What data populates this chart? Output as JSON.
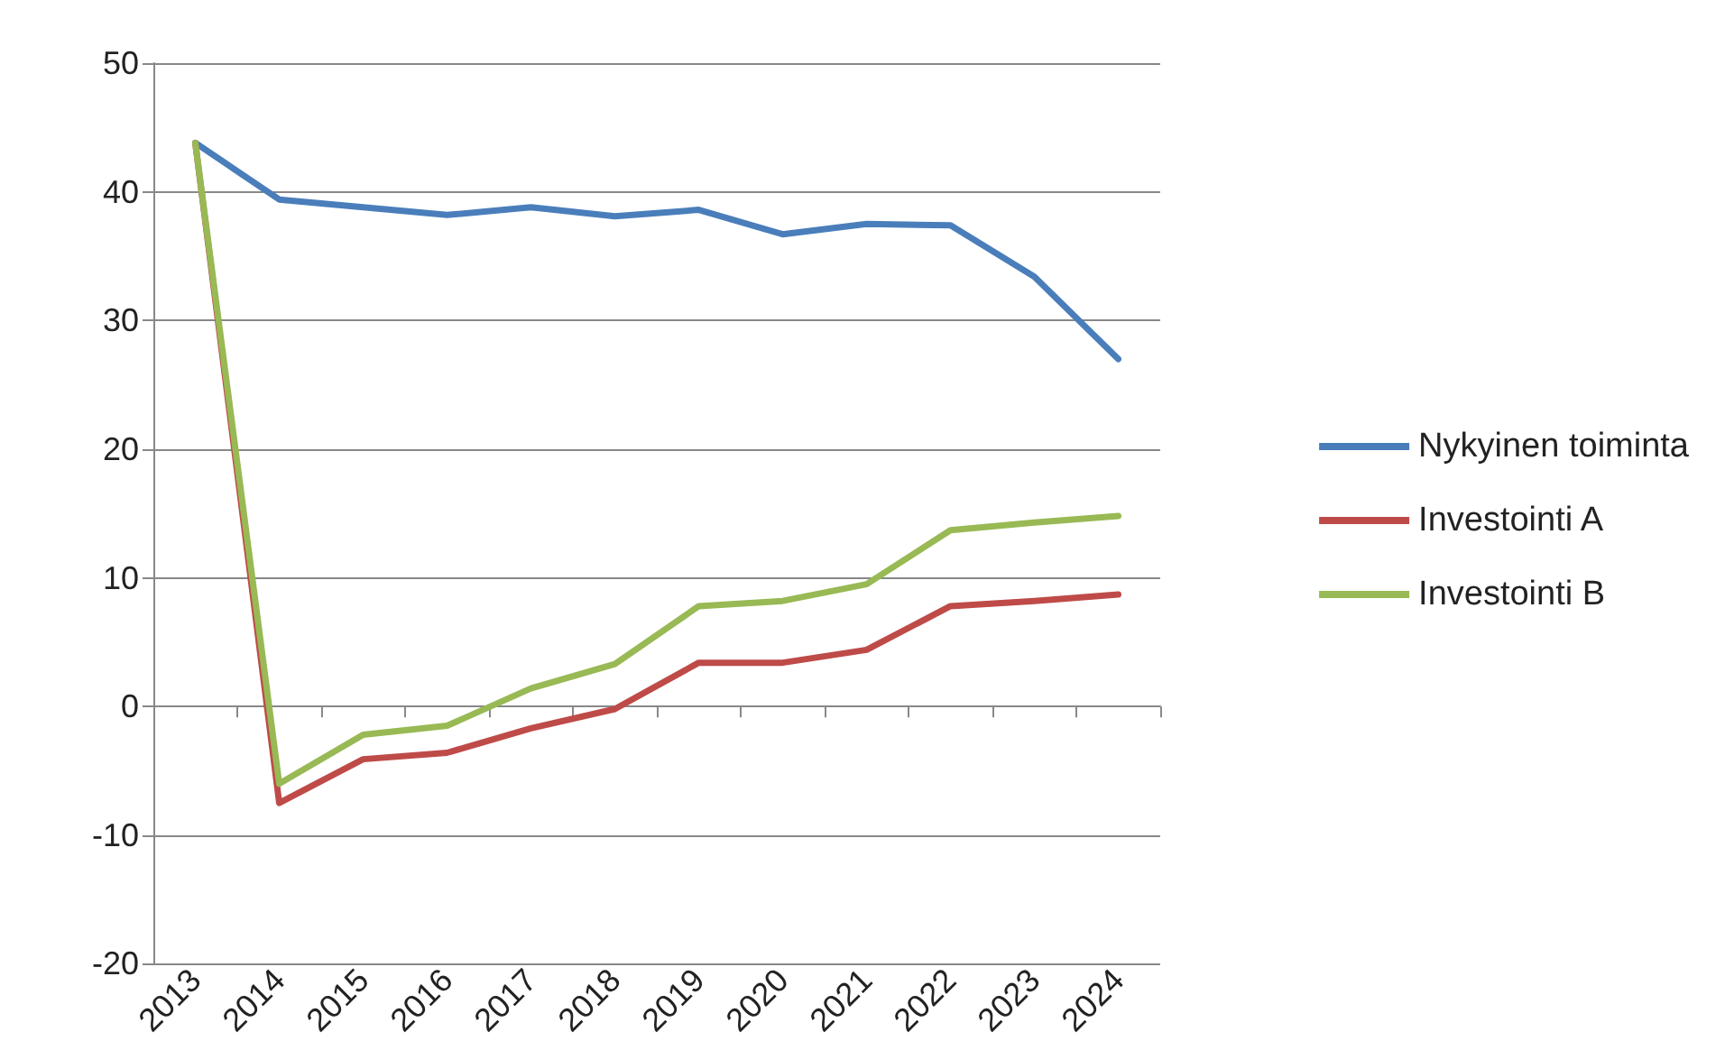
{
  "chart_data": {
    "type": "line",
    "categories": [
      "2013",
      "2014",
      "2015",
      "2016",
      "2017",
      "2018",
      "2019",
      "2020",
      "2021",
      "2022",
      "2023",
      "2024"
    ],
    "series": [
      {
        "name": "Nykyinen toiminta",
        "color": "#4a7ebb",
        "values": [
          43.8,
          39.4,
          38.8,
          38.2,
          38.8,
          38.1,
          38.6,
          36.7,
          37.5,
          37.4,
          33.4,
          27.0
        ]
      },
      {
        "name": "Investointi A",
        "color": "#be4b48",
        "values": [
          43.8,
          -7.5,
          -4.1,
          -3.6,
          -1.7,
          -0.2,
          3.4,
          3.4,
          4.4,
          7.8,
          8.2,
          8.7
        ]
      },
      {
        "name": "Investointi B",
        "color": "#98b954",
        "values": [
          43.8,
          -6.0,
          -2.2,
          -1.5,
          1.4,
          3.3,
          7.8,
          8.2,
          9.5,
          13.7,
          14.3,
          14.8
        ]
      }
    ],
    "ylim": [
      -20,
      50
    ],
    "yticks": [
      -20,
      -10,
      0,
      10,
      20,
      30,
      40,
      50
    ],
    "grid": "y",
    "legend": "right",
    "marker": "none",
    "line_style": "solid"
  }
}
